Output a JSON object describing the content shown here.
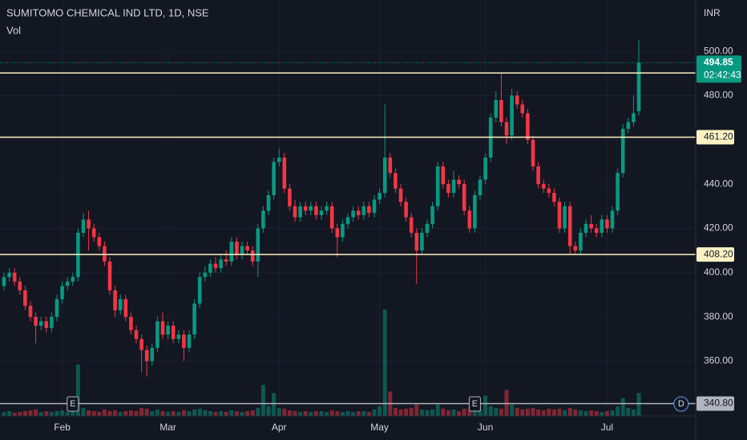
{
  "chart_data": {
    "type": "candlestick",
    "title": "SUMITOMO CHEMICAL IND LTD, 1D, NSE",
    "volume_label": "Vol",
    "currency": "INR",
    "categories": [
      null,
      null,
      null,
      null,
      null,
      null,
      null,
      null,
      null,
      null,
      null,
      "Feb",
      null,
      null,
      null,
      null,
      null,
      null,
      null,
      null,
      null,
      null,
      null,
      null,
      null,
      null,
      null,
      null,
      null,
      null,
      null,
      "Mar",
      null,
      null,
      null,
      null,
      null,
      null,
      null,
      null,
      null,
      null,
      null,
      null,
      null,
      null,
      null,
      null,
      null,
      null,
      null,
      null,
      "Apr",
      null,
      null,
      null,
      null,
      null,
      null,
      null,
      null,
      null,
      null,
      null,
      null,
      null,
      null,
      null,
      null,
      null,
      null,
      "May",
      null,
      null,
      null,
      null,
      null,
      null,
      null,
      null,
      null,
      null,
      null,
      null,
      null,
      null,
      null,
      null,
      null,
      null,
      null,
      "Jun",
      null,
      null,
      null,
      null,
      null,
      null,
      null,
      null,
      null,
      null,
      null,
      null,
      null,
      null,
      null,
      null,
      null,
      null,
      null,
      null,
      null,
      null,
      "Jul",
      null,
      null,
      null,
      null,
      null,
      null
    ],
    "open": [
      394,
      398,
      400,
      396,
      392,
      385,
      380,
      376,
      378,
      375,
      380,
      388,
      394,
      396,
      398,
      418,
      424,
      420,
      416,
      412,
      405,
      392,
      383,
      388,
      380,
      374,
      370,
      365,
      360,
      366,
      378,
      372,
      376,
      370,
      372,
      366,
      372,
      386,
      398,
      400,
      404,
      402,
      406,
      405,
      414,
      408,
      412,
      410,
      405,
      420,
      428,
      435,
      450,
      452,
      438,
      430,
      425,
      430,
      428,
      430,
      426,
      428,
      430,
      420,
      416,
      422,
      425,
      428,
      426,
      430,
      427,
      433,
      436,
      452,
      445,
      438,
      432,
      425,
      418,
      410,
      418,
      422,
      430,
      448,
      440,
      436,
      442,
      440,
      428,
      420,
      435,
      442,
      452,
      470,
      478,
      468,
      462,
      480,
      476,
      472,
      460,
      448,
      440,
      438,
      436,
      432,
      420,
      430,
      412,
      410,
      418,
      422,
      420,
      418,
      424,
      420,
      428,
      445,
      465,
      468,
      473
    ],
    "high": [
      400,
      402,
      402,
      398,
      394,
      387,
      382,
      380,
      380,
      382,
      390,
      396,
      398,
      400,
      420,
      427,
      428,
      422,
      418,
      414,
      407,
      394,
      390,
      390,
      382,
      376,
      372,
      367,
      368,
      380,
      382,
      378,
      378,
      374,
      374,
      374,
      388,
      400,
      403,
      406,
      407,
      408,
      410,
      416,
      416,
      414,
      414,
      412,
      422,
      430,
      437,
      452,
      456,
      454,
      440,
      433,
      432,
      432,
      432,
      432,
      430,
      432,
      432,
      422,
      424,
      427,
      430,
      430,
      432,
      432,
      435,
      438,
      476,
      454,
      447,
      440,
      434,
      427,
      420,
      420,
      424,
      432,
      450,
      450,
      442,
      446,
      444,
      442,
      430,
      437,
      444,
      454,
      472,
      482,
      490,
      470,
      483,
      482,
      478,
      474,
      462,
      450,
      442,
      440,
      438,
      434,
      432,
      432,
      414,
      420,
      424,
      426,
      422,
      426,
      426,
      430,
      447,
      467,
      470,
      480,
      505
    ],
    "low": [
      392,
      396,
      394,
      390,
      383,
      378,
      368,
      374,
      373,
      373,
      378,
      386,
      392,
      394,
      396,
      416,
      410,
      414,
      410,
      403,
      390,
      380,
      381,
      378,
      372,
      368,
      355,
      353,
      358,
      364,
      370,
      370,
      368,
      368,
      360,
      364,
      370,
      384,
      396,
      398,
      400,
      400,
      403,
      403,
      406,
      406,
      408,
      403,
      398,
      418,
      426,
      433,
      448,
      436,
      428,
      423,
      423,
      426,
      426,
      424,
      424,
      426,
      418,
      407,
      414,
      420,
      423,
      424,
      424,
      425,
      425,
      431,
      434,
      443,
      436,
      430,
      423,
      416,
      395,
      408,
      416,
      420,
      428,
      438,
      434,
      434,
      438,
      426,
      418,
      418,
      433,
      440,
      450,
      468,
      466,
      458,
      460,
      474,
      470,
      458,
      446,
      438,
      436,
      434,
      430,
      418,
      418,
      408,
      408,
      408,
      416,
      418,
      416,
      416,
      418,
      418,
      426,
      443,
      463,
      466,
      471
    ],
    "close": [
      398,
      400,
      396,
      392,
      385,
      380,
      376,
      378,
      375,
      380,
      388,
      394,
      396,
      398,
      418,
      424,
      420,
      416,
      412,
      405,
      392,
      383,
      388,
      380,
      374,
      370,
      365,
      360,
      366,
      378,
      372,
      376,
      370,
      372,
      366,
      372,
      386,
      398,
      400,
      404,
      402,
      406,
      405,
      414,
      408,
      412,
      410,
      405,
      420,
      428,
      435,
      450,
      452,
      438,
      430,
      425,
      430,
      428,
      430,
      426,
      428,
      430,
      420,
      416,
      422,
      425,
      428,
      426,
      430,
      427,
      433,
      436,
      452,
      445,
      438,
      432,
      425,
      418,
      410,
      418,
      422,
      430,
      448,
      440,
      436,
      442,
      440,
      428,
      420,
      435,
      442,
      452,
      470,
      478,
      468,
      462,
      480,
      476,
      472,
      460,
      448,
      440,
      438,
      436,
      432,
      420,
      430,
      412,
      410,
      418,
      422,
      420,
      418,
      424,
      420,
      428,
      445,
      465,
      468,
      472,
      494.85
    ],
    "volume": [
      5,
      6,
      4,
      5,
      6,
      7,
      8,
      5,
      6,
      5,
      6,
      7,
      5,
      6,
      63,
      10,
      7,
      6,
      5,
      8,
      6,
      7,
      5,
      6,
      7,
      6,
      10,
      9,
      6,
      8,
      6,
      5,
      6,
      5,
      7,
      6,
      8,
      9,
      7,
      6,
      5,
      6,
      5,
      7,
      6,
      5,
      6,
      7,
      10,
      38,
      12,
      28,
      10,
      9,
      7,
      6,
      5,
      6,
      5,
      6,
      6,
      5,
      7,
      6,
      5,
      6,
      5,
      6,
      6,
      5,
      8,
      12,
      130,
      30,
      10,
      8,
      9,
      10,
      14,
      8,
      7,
      8,
      14,
      9,
      7,
      8,
      6,
      9,
      8,
      7,
      8,
      25,
      12,
      10,
      9,
      32,
      14,
      10,
      8,
      9,
      10,
      8,
      7,
      9,
      8,
      9,
      7,
      10,
      8,
      7,
      6,
      7,
      6,
      5,
      6,
      7,
      12,
      22,
      10,
      8,
      28
    ],
    "up_color": "#089981",
    "down_color": "#f23645",
    "ylim": [
      335.2,
      523.2
    ],
    "yticks": [
      {
        "value": 360,
        "label": "360.00"
      },
      {
        "value": 380,
        "label": "380.00"
      },
      {
        "value": 400,
        "label": "400.00"
      },
      {
        "value": 420,
        "label": "420.00"
      },
      {
        "value": 440,
        "label": "440.00"
      },
      {
        "value": 460,
        "label": "460.00"
      },
      {
        "value": 480,
        "label": "480.00"
      },
      {
        "value": 500,
        "label": "500.00"
      }
    ],
    "horizontal_lines": [
      {
        "value": 490.2,
        "color": "#fff3c4"
      },
      {
        "value": 461.2,
        "label": "461.20",
        "color": "#fff3c4"
      },
      {
        "value": 408.2,
        "label": "408.20",
        "color": "#fff3c4"
      },
      {
        "value": 340.8,
        "label": "340.80",
        "color": "#b2b5be"
      }
    ],
    "last_price": {
      "value": 494.85,
      "label": "494.85",
      "countdown": "02:42:43",
      "color": "#089981"
    },
    "events": [
      {
        "label": "E",
        "index": 13
      },
      {
        "label": "E",
        "index": 89
      },
      {
        "label": "D",
        "index": 128
      }
    ]
  }
}
